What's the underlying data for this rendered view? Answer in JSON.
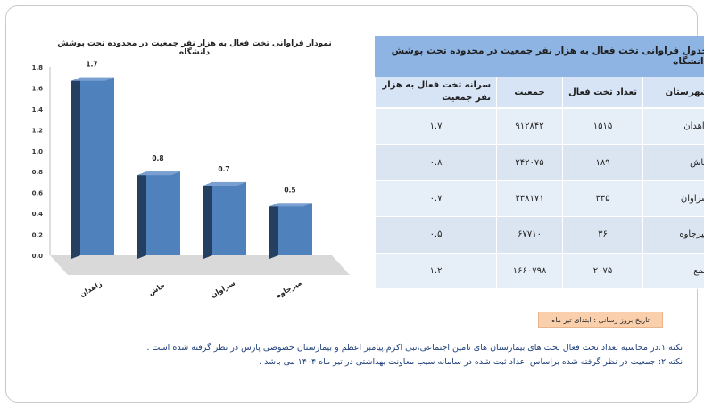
{
  "chart_data": {
    "type": "bar",
    "title": "نمودار فراوانی تخت فعال به هزار نفر جمعیت در محدوده تحت پوشش دانشگاه",
    "categories": [
      "زاهدان",
      "خاش",
      "سراوان",
      "میرجاوه"
    ],
    "values": [
      1.7,
      0.8,
      0.7,
      0.5
    ],
    "data_labels": [
      "1.7",
      "0.8",
      "0.7",
      "0.5"
    ],
    "ylim": [
      0,
      1.8
    ],
    "yticks": [
      "0.0",
      "0.2",
      "0.4",
      "0.6",
      "0.8",
      "1.0",
      "1.2",
      "1.4",
      "1.6",
      "1.8"
    ],
    "xlabel": "",
    "ylabel": "",
    "grid": false,
    "style": "3d-column",
    "colors": {
      "front": "#4f81bd",
      "side": "#243f60",
      "top": "#7a9fd1",
      "floor": "#d9d9d9"
    }
  },
  "table": {
    "title": "جدول فراوانی تخت فعال به هزار نفر جمعیت در محدوده تحت پوشش دانشگاه",
    "headers": {
      "city": "شهرستان",
      "beds": "تعداد تخت فعال",
      "population": "جمعیت",
      "rate": "سرانه تخت فعال به هزار نفر جمعیت"
    },
    "rows": [
      {
        "city": "زاهدان",
        "beds": "۱۵۱۵",
        "population": "۹۱۲۸۴۲",
        "rate": "۱.۷"
      },
      {
        "city": "خاش",
        "beds": "۱۸۹",
        "population": "۲۴۲۰۷۵",
        "rate": "۰.۸"
      },
      {
        "city": "سراوان",
        "beds": "۳۳۵",
        "population": "۴۳۸۱۷۱",
        "rate": "۰.۷"
      },
      {
        "city": "میرجاوه",
        "beds": "۳۶",
        "population": "۶۷۷۱۰",
        "rate": "۰.۵"
      },
      {
        "city": "جمع",
        "beds": "۲۰۷۵",
        "population": "۱۶۶۰۷۹۸",
        "rate": "۱.۲"
      }
    ]
  },
  "update_date": "تاریخ بروز رسانی : ابتدای تیر ماه",
  "notes": [
    "نکته ۱:در محاسبه تعداد تخت فعال تخت های بیمارستان های تامین اجتماعی،نبی اکرم،پیامبر اعظم و بیمارستان خصوصی پارس در نظر گرفته شده است .",
    "نکته ۲: جمعیت در نظر گرفته شده براساس اعداد ثبت شده در سامانه سیب معاونت بهداشتی در تیر ماه ۱۴۰۴ می باشد ."
  ]
}
